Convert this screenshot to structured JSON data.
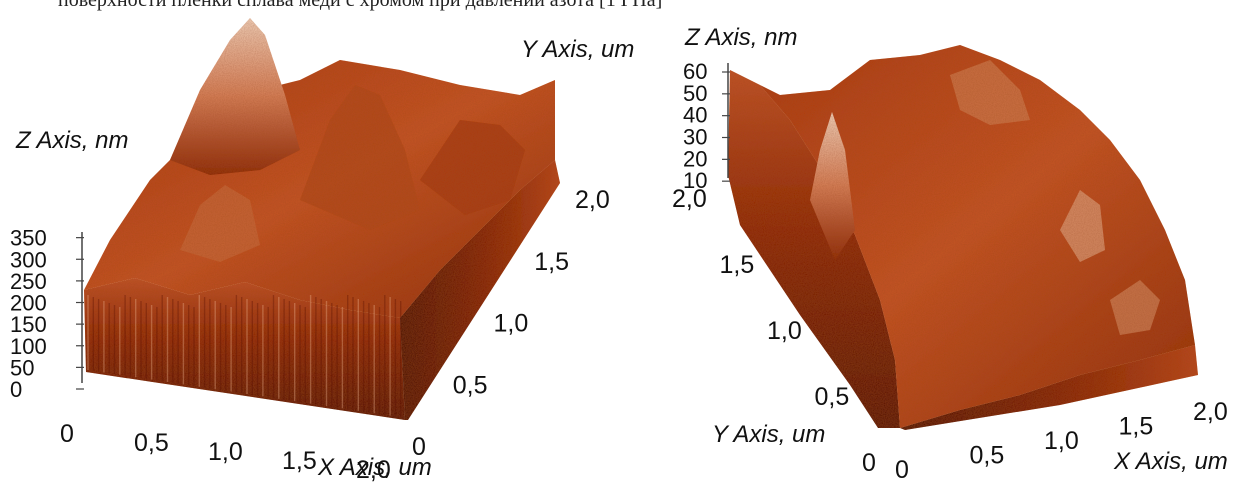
{
  "caption_fragment": "поверхности пленки сплава меди с хромом при давлении азота  [1 ГПа]",
  "chart_data": [
    {
      "type": "surface3d",
      "title": "",
      "x_axis": {
        "label": "X Axis, um",
        "ticks": [
          "0",
          "0,5",
          "1,0",
          "1,5",
          "2,0"
        ],
        "range": [
          0,
          2.0
        ]
      },
      "y_axis": {
        "label": "Y Axis, um",
        "ticks": [
          "0",
          "0,5",
          "1,0",
          "1,5",
          "2,0"
        ],
        "range": [
          0,
          2.0
        ]
      },
      "z_axis": {
        "label": "Z Axis, nm",
        "ticks": [
          "0",
          "50",
          "100",
          "150",
          "200",
          "250",
          "300",
          "350"
        ],
        "range": [
          0,
          370
        ]
      },
      "colormap": [
        "#3a0700",
        "#7a1a05",
        "#b8400f",
        "#e0784a",
        "#f2c9a6"
      ],
      "view": "front-left",
      "z_max_approx": 370
    },
    {
      "type": "surface3d",
      "title": "",
      "x_axis": {
        "label": "X Axis, um",
        "ticks": [
          "0",
          "0,5",
          "1,0",
          "1,5",
          "2,0"
        ],
        "range": [
          0,
          2.0
        ]
      },
      "y_axis": {
        "label": "Y Axis, um",
        "ticks": [
          "0",
          "0,5",
          "1,0",
          "1,5",
          "2,0"
        ],
        "range": [
          0,
          2.0
        ]
      },
      "z_axis": {
        "label": "Z Axis, nm",
        "ticks": [
          "10",
          "20",
          "30",
          "40",
          "50",
          "60"
        ],
        "range": [
          0,
          60
        ]
      },
      "colormap": [
        "#3a0700",
        "#7a1a05",
        "#b8400f",
        "#e0784a",
        "#f2c9a6"
      ],
      "view": "front-right",
      "z_max_approx": 60
    }
  ]
}
